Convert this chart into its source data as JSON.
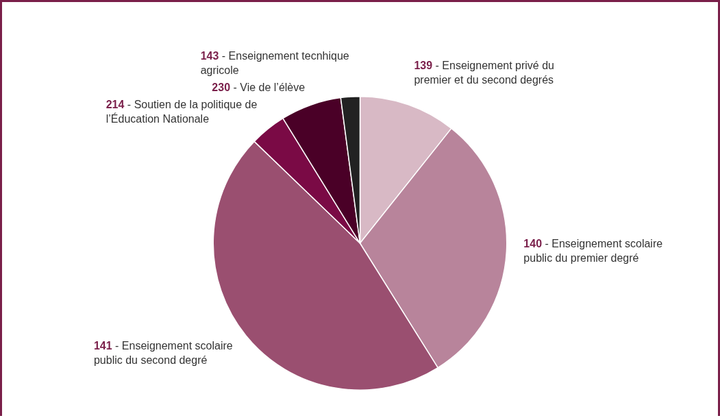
{
  "chart_data": {
    "type": "pie",
    "categories": [
      "139 - Enseignement privé du premier et du second degrés",
      "140 - Enseignement scolaire public du premier degré",
      "141 - Enseignement scolaire public du second degré",
      "214 - Soutien de la politique de l’Éducation Nationale",
      "230 - Vie de l’élève",
      "143 - Enseignement tecnhique agricole"
    ],
    "values": [
      10.7,
      30.4,
      46.1,
      4.0,
      6.7,
      2.1
    ],
    "colors": [
      "#d8b9c5",
      "#b8849b",
      "#9a4f70",
      "#7a0a45",
      "#4a0027",
      "#222222"
    ],
    "legend": false
  }
}
